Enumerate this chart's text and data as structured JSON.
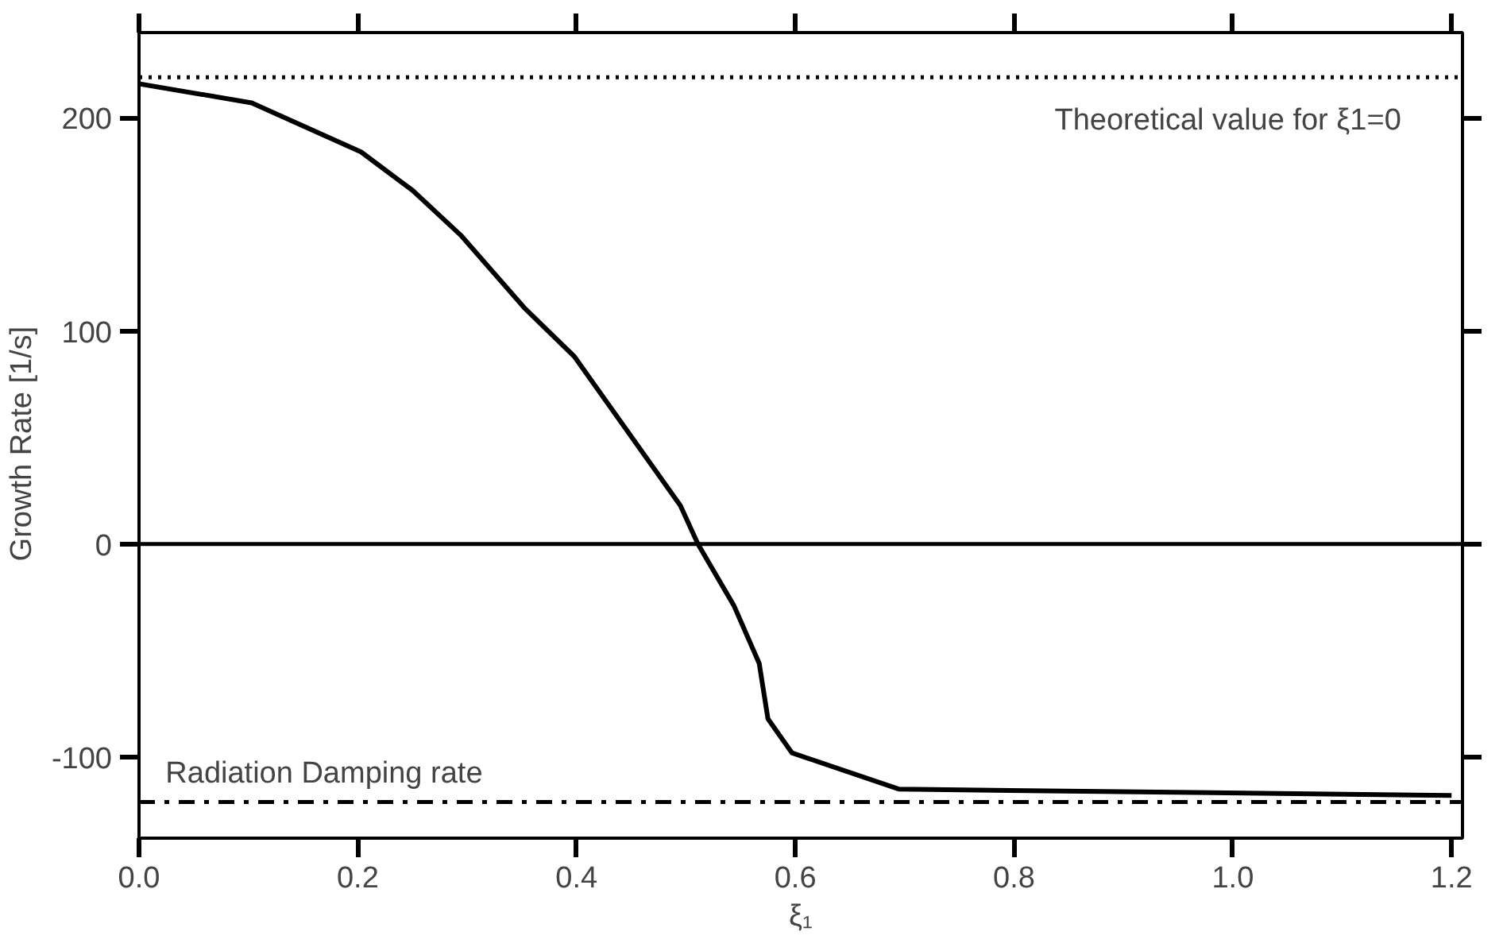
{
  "chart_data": {
    "type": "line",
    "xlabel": "ξ₁",
    "ylabel": "Growth  Rate  [1/s]",
    "x": [
      0,
      0.103,
      0.203,
      0.25,
      0.294,
      0.352,
      0.398,
      0.495,
      0.511,
      0.544,
      0.567,
      0.575,
      0.597,
      0.695,
      1.2
    ],
    "series": [
      {
        "color": "#000000",
        "values": [
          216,
          207,
          184,
          166,
          145,
          111,
          88,
          18,
          0,
          -29,
          -56,
          -82,
          -98,
          -115,
          -118
        ]
      }
    ],
    "xlim": [
      0,
      1.21
    ],
    "ylim": [
      -138,
      240
    ],
    "xticks": [
      {
        "value": 0,
        "label": "0.0"
      },
      {
        "value": 0.2,
        "label": "0.2"
      },
      {
        "value": 0.4,
        "label": "0.4"
      },
      {
        "value": 0.6,
        "label": "0.6"
      },
      {
        "value": 0.8,
        "label": "0.8"
      },
      {
        "value": 1.0,
        "label": "1.0"
      },
      {
        "value": 1.2,
        "label": "1.2"
      }
    ],
    "yticks": [
      -100,
      0,
      100,
      200
    ],
    "annotations": [
      "Theoretical value for  ξ1=0",
      "Radiation Damping rate"
    ],
    "ref_lines": [
      {
        "axis": "y",
        "value": 219,
        "line_style": "dotted",
        "color": "#000000"
      },
      {
        "axis": "y",
        "value": 0,
        "line_style": "solid",
        "color": "#000000"
      },
      {
        "axis": "y",
        "value": -121,
        "line_style": "dashdot",
        "color": "#000000"
      }
    ],
    "grid": false,
    "marker": "none",
    "line_style": "solid"
  }
}
